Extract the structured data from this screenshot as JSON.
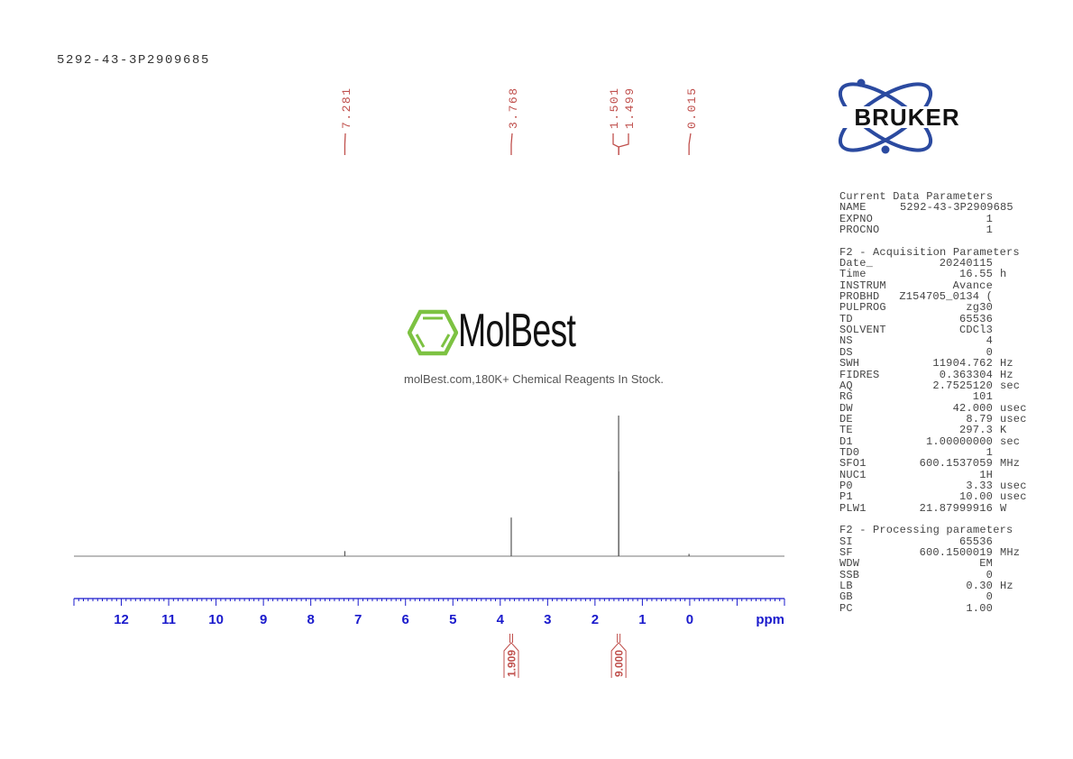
{
  "sample_title": "5292-43-3P2909685",
  "watermark": {
    "brand": "MolBest",
    "tagline": "molBest.com,180K+ Chemical Reagents In Stock.",
    "color": "#7dc242"
  },
  "logo": {
    "text": "BRUKER",
    "color": "#2b4aa0"
  },
  "colors": {
    "peak_labels": "#c0504d",
    "axis": "#1a1acc",
    "spectrum": "#7a7a7a"
  },
  "chart_data": {
    "type": "line",
    "title": "",
    "xlabel": "ppm",
    "xlim": [
      13.0,
      -2.0
    ],
    "x_reversed": true,
    "grid": false,
    "major_ticks": [
      12,
      11,
      10,
      9,
      8,
      7,
      6,
      5,
      4,
      3,
      2,
      1,
      0,
      -1
    ],
    "tick_labels": [
      "12",
      "11",
      "10",
      "9",
      "8",
      "7",
      "6",
      "5",
      "4",
      "3",
      "2",
      "1",
      "0"
    ],
    "minor_tick_step": 0.1,
    "peaks": [
      {
        "ppm": 7.281,
        "intensity": 0.03
      },
      {
        "ppm": 3.768,
        "intensity": 0.27
      },
      {
        "ppm": 1.501,
        "intensity": 1.0
      },
      {
        "ppm": 1.499,
        "intensity": 0.6
      },
      {
        "ppm": 0.015,
        "intensity": 0.01
      }
    ],
    "peak_labels": [
      "7.281",
      "3.768",
      "1.501",
      "1.499",
      "0.015"
    ],
    "integrals": [
      {
        "ppm": 3.768,
        "value": "1.909"
      },
      {
        "ppm": 1.5,
        "value": "9.000"
      }
    ]
  },
  "parameters": [
    {
      "header": "Current Data Parameters"
    },
    {
      "name": "NAME",
      "value": "5292-43-3P2909685",
      "align": "left"
    },
    {
      "name": "EXPNO",
      "value": "1"
    },
    {
      "name": "PROCNO",
      "value": "1"
    },
    {
      "blank": true
    },
    {
      "header": "F2 - Acquisition Parameters"
    },
    {
      "name": "Date_",
      "value": "20240115"
    },
    {
      "name": "Time",
      "value": "16.55",
      "unit": "h"
    },
    {
      "name": "INSTRUM",
      "value": "Avance"
    },
    {
      "name": "PROBHD",
      "value": "Z154705_0134 ("
    },
    {
      "name": "PULPROG",
      "value": "zg30"
    },
    {
      "name": "TD",
      "value": "65536"
    },
    {
      "name": "SOLVENT",
      "value": "CDCl3"
    },
    {
      "name": "NS",
      "value": "4"
    },
    {
      "name": "DS",
      "value": "0"
    },
    {
      "name": "SWH",
      "value": "11904.762",
      "unit": "Hz"
    },
    {
      "name": "FIDRES",
      "value": "0.363304",
      "unit": "Hz"
    },
    {
      "name": "AQ",
      "value": "2.7525120",
      "unit": "sec"
    },
    {
      "name": "RG",
      "value": "101"
    },
    {
      "name": "DW",
      "value": "42.000",
      "unit": "usec"
    },
    {
      "name": "DE",
      "value": "8.79",
      "unit": "usec"
    },
    {
      "name": "TE",
      "value": "297.3",
      "unit": "K"
    },
    {
      "name": "D1",
      "value": "1.00000000",
      "unit": "sec"
    },
    {
      "name": "TD0",
      "value": "1"
    },
    {
      "name": "SFO1",
      "value": "600.1537059",
      "unit": "MHz"
    },
    {
      "name": "NUC1",
      "value": "1H"
    },
    {
      "name": "P0",
      "value": "3.33",
      "unit": "usec"
    },
    {
      "name": "P1",
      "value": "10.00",
      "unit": "usec"
    },
    {
      "name": "PLW1",
      "value": "21.87999916",
      "unit": "W"
    },
    {
      "blank": true
    },
    {
      "header": "F2 - Processing parameters"
    },
    {
      "name": "SI",
      "value": "65536"
    },
    {
      "name": "SF",
      "value": "600.1500019",
      "unit": "MHz"
    },
    {
      "name": "WDW",
      "value": "EM"
    },
    {
      "name": "SSB",
      "value": "0"
    },
    {
      "name": "LB",
      "value": "0.30",
      "unit": "Hz"
    },
    {
      "name": "GB",
      "value": "0"
    },
    {
      "name": "PC",
      "value": "1.00"
    }
  ]
}
